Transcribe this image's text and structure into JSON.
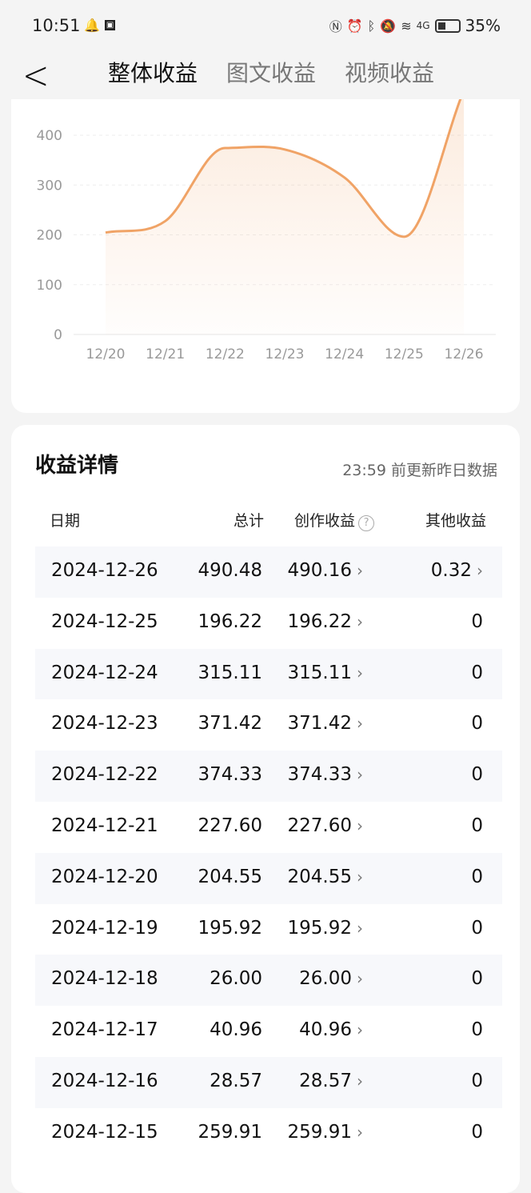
{
  "status_bar": {
    "time": "10:51",
    "battery": "35%",
    "network": "4G"
  },
  "nav": {
    "tabs": [
      {
        "label": "整体收益",
        "active": true
      },
      {
        "label": "图文收益",
        "active": false
      },
      {
        "label": "视频收益",
        "active": false
      }
    ]
  },
  "chart_data": {
    "type": "area",
    "categories": [
      "12/20",
      "12/21",
      "12/22",
      "12/23",
      "12/24",
      "12/25",
      "12/26"
    ],
    "values": [
      204.55,
      227.6,
      374.33,
      371.42,
      315.11,
      196.22,
      490.48
    ],
    "yticks": [
      "0",
      "100",
      "200",
      "300",
      "400"
    ],
    "ylim": [
      0,
      400
    ],
    "grid": true,
    "color": "#f0a366"
  },
  "details": {
    "title": "收益详情",
    "note": "23:59 前更新昨日数据",
    "headers": {
      "date": "日期",
      "total": "总计",
      "creation": "创作收益",
      "other": "其他收益"
    },
    "rows": [
      {
        "date": "2024-12-26",
        "total": "490.48",
        "creation": "490.16",
        "other": "0.32"
      },
      {
        "date": "2024-12-25",
        "total": "196.22",
        "creation": "196.22",
        "other": "0"
      },
      {
        "date": "2024-12-24",
        "total": "315.11",
        "creation": "315.11",
        "other": "0"
      },
      {
        "date": "2024-12-23",
        "total": "371.42",
        "creation": "371.42",
        "other": "0"
      },
      {
        "date": "2024-12-22",
        "total": "374.33",
        "creation": "374.33",
        "other": "0"
      },
      {
        "date": "2024-12-21",
        "total": "227.60",
        "creation": "227.60",
        "other": "0"
      },
      {
        "date": "2024-12-20",
        "total": "204.55",
        "creation": "204.55",
        "other": "0"
      },
      {
        "date": "2024-12-19",
        "total": "195.92",
        "creation": "195.92",
        "other": "0"
      },
      {
        "date": "2024-12-18",
        "total": "26.00",
        "creation": "26.00",
        "other": "0"
      },
      {
        "date": "2024-12-17",
        "total": "40.96",
        "creation": "40.96",
        "other": "0"
      },
      {
        "date": "2024-12-16",
        "total": "28.57",
        "creation": "28.57",
        "other": "0"
      },
      {
        "date": "2024-12-15",
        "total": "259.91",
        "creation": "259.91",
        "other": "0"
      }
    ]
  }
}
